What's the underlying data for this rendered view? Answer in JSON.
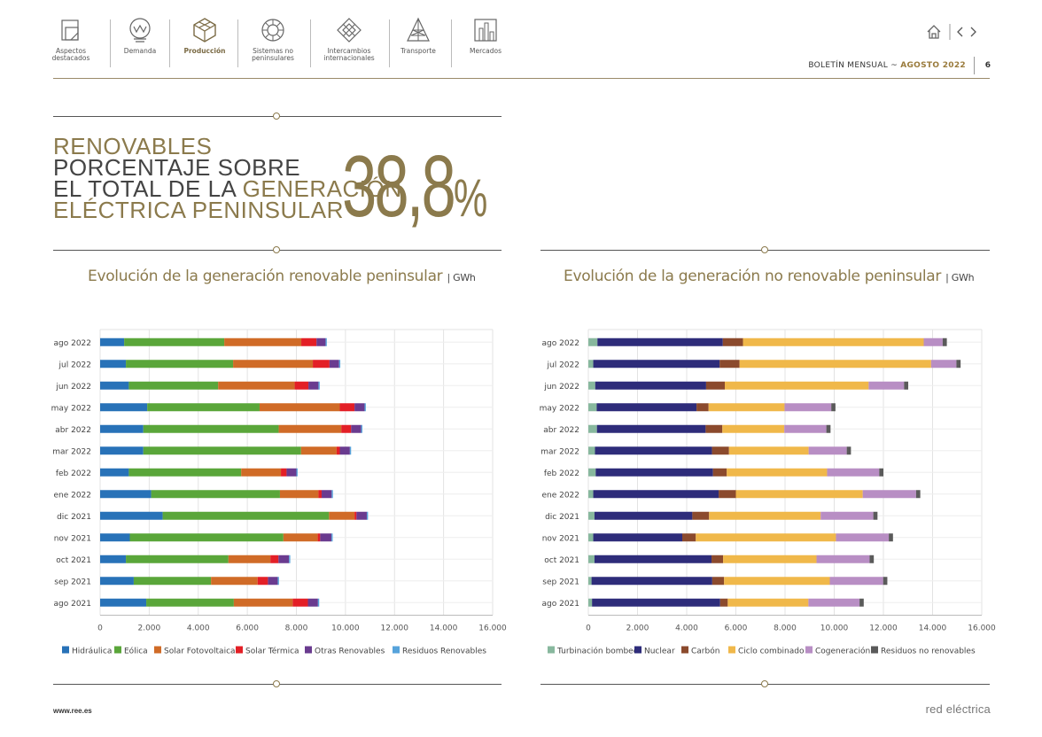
{
  "nav": {
    "items": [
      {
        "label": "Aspectos destacados",
        "icon": "highlights-icon"
      },
      {
        "label": "Demanda",
        "icon": "demand-icon"
      },
      {
        "label": "Producción",
        "icon": "production-icon",
        "active": true
      },
      {
        "label": "Sistemas no peninsulares",
        "icon": "non-peninsular-icon"
      },
      {
        "label": "Intercambios internacionales",
        "icon": "exchanges-icon"
      },
      {
        "label": "Transporte",
        "icon": "transport-icon"
      },
      {
        "label": "Mercados",
        "icon": "markets-icon"
      }
    ]
  },
  "header": {
    "bulletin_prefix": "BOLETÍN MENSUAL ~ ",
    "bulletin_month": "AGOSTO 2022",
    "page_number": "6"
  },
  "headline": {
    "line1": "RENOVABLES",
    "line2": "PORCENTAJE SOBRE",
    "line3a": "EL TOTAL DE LA ",
    "line3b": "GENERACIÓN",
    "line4": "ELÉCTRICA PENINSULAR",
    "value": "38,8",
    "unit": "%"
  },
  "footer": {
    "url": "www.ree.es",
    "logo": "red eléctrica"
  },
  "chart_data": [
    {
      "type": "bar",
      "orientation": "horizontal",
      "stacked": true,
      "title": "Evolución de la generación renovable peninsular",
      "unit": "GWh",
      "categories": [
        "ago 2022",
        "jul 2022",
        "jun 2022",
        "may 2022",
        "abr 2022",
        "mar 2022",
        "feb 2022",
        "ene 2022",
        "dic 2021",
        "nov 2021",
        "oct 2021",
        "sep 2021",
        "ago 2021"
      ],
      "xlim": [
        0,
        16000
      ],
      "xticks": [
        0,
        2000,
        4000,
        6000,
        8000,
        10000,
        12000,
        14000,
        16000
      ],
      "xtick_labels": [
        "0",
        "2.000",
        "4.000",
        "6.000",
        "8.000",
        "10.000",
        "12.000",
        "14.000",
        "16.000"
      ],
      "grid": true,
      "legend_position": "bottom",
      "series": [
        {
          "name": "Hidráulica",
          "color": "#2872b8",
          "values": [
            980,
            1050,
            1170,
            1920,
            1760,
            1760,
            1170,
            2080,
            2550,
            1210,
            1050,
            1370,
            1880
          ]
        },
        {
          "name": "Eólica",
          "color": "#5aa63a",
          "values": [
            4080,
            4370,
            3640,
            4580,
            5520,
            6430,
            4580,
            5250,
            6780,
            6260,
            4180,
            3150,
            3570
          ]
        },
        {
          "name": "Solar Fotovoltaica",
          "color": "#d06b27",
          "values": [
            3140,
            3250,
            3120,
            3270,
            2550,
            1450,
            1620,
            1570,
            1040,
            1400,
            1710,
            1900,
            2400
          ]
        },
        {
          "name": "Solar Térmica",
          "color": "#e31f26",
          "values": [
            620,
            680,
            560,
            600,
            400,
            130,
            230,
            130,
            80,
            100,
            330,
            420,
            620
          ]
        },
        {
          "name": "Otras Renovables",
          "color": "#6a3b8f",
          "values": [
            370,
            390,
            410,
            410,
            410,
            410,
            400,
            410,
            420,
            460,
            430,
            400,
            410
          ]
        },
        {
          "name": "Residuos Renovables",
          "color": "#56a3db",
          "values": [
            50,
            50,
            50,
            50,
            50,
            50,
            50,
            50,
            50,
            50,
            50,
            50,
            50
          ]
        }
      ]
    },
    {
      "type": "bar",
      "orientation": "horizontal",
      "stacked": true,
      "title": "Evolución de la generación no renovable peninsular",
      "unit": "GWh",
      "categories": [
        "ago 2022",
        "jul 2022",
        "jun 2022",
        "may 2022",
        "abr 2022",
        "mar 2022",
        "feb 2022",
        "ene 2022",
        "dic 2021",
        "nov 2021",
        "oct 2021",
        "sep 2021",
        "ago 2021"
      ],
      "xlim": [
        0,
        16000
      ],
      "xticks": [
        0,
        2000,
        4000,
        6000,
        8000,
        10000,
        12000,
        14000,
        16000
      ],
      "xtick_labels": [
        "0",
        "2.000",
        "4.000",
        "6.000",
        "8.000",
        "10.000",
        "12.000",
        "14.000",
        "16.000"
      ],
      "grid": true,
      "legend_position": "bottom",
      "series": [
        {
          "name": "Turbinación bombeo",
          "color": "#88b89e",
          "values": [
            370,
            200,
            280,
            340,
            350,
            270,
            300,
            200,
            250,
            200,
            250,
            130,
            150
          ]
        },
        {
          "name": "Nuclear",
          "color": "#2e2c7a",
          "values": [
            5100,
            5140,
            4510,
            4060,
            4420,
            4760,
            4770,
            5100,
            3980,
            3620,
            4760,
            4910,
            5210
          ]
        },
        {
          "name": "Carbón",
          "color": "#8b4a2d",
          "values": [
            820,
            810,
            760,
            490,
            680,
            690,
            560,
            700,
            680,
            550,
            470,
            480,
            310
          ]
        },
        {
          "name": "Ciclo combinado",
          "color": "#f0b84a",
          "values": [
            7350,
            7790,
            5850,
            3090,
            2520,
            3240,
            4080,
            5160,
            4540,
            5700,
            3800,
            4300,
            3280
          ]
        },
        {
          "name": "Cogeneración",
          "color": "#b88ec4",
          "values": [
            770,
            1030,
            1440,
            1900,
            1710,
            1550,
            2120,
            2170,
            2140,
            2150,
            2160,
            2170,
            2080
          ]
        },
        {
          "name": "Residuos no renovables",
          "color": "#5a5a5a",
          "values": [
            170,
            170,
            170,
            170,
            170,
            170,
            170,
            170,
            170,
            170,
            170,
            170,
            170
          ]
        }
      ]
    }
  ]
}
